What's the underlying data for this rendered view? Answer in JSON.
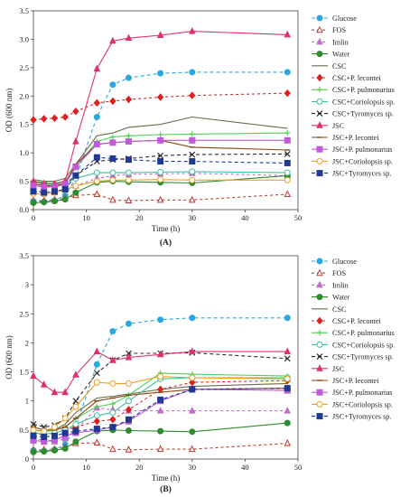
{
  "figure": {
    "panel_labels": [
      "(A)",
      "(B)"
    ]
  },
  "chart_data": [
    {
      "type": "line",
      "panel": "(A)",
      "xlabel": "Time (h)",
      "ylabel": "OD (600 nm)",
      "xlim": [
        0,
        50
      ],
      "ylim": [
        0,
        3.5
      ],
      "xticks": [
        "0",
        "10",
        "20",
        "30",
        "40",
        "50"
      ],
      "yticks": [
        "0.0",
        "0.5",
        "1.0",
        "1.5",
        "2.0",
        "2.5",
        "3.0",
        "3.5"
      ],
      "grid": false,
      "legend_position": "right",
      "x": [
        0,
        2,
        4,
        6,
        8,
        12,
        15,
        18,
        24,
        30,
        48
      ],
      "series": [
        {
          "name": "Glucose",
          "color": "#29a8e0",
          "dash": "4,3",
          "marker": "circle",
          "fill": "#29a8e0",
          "values": [
            0.15,
            0.14,
            0.16,
            0.25,
            0.55,
            1.63,
            2.2,
            2.32,
            2.4,
            2.42,
            2.42
          ]
        },
        {
          "name": "FOS",
          "color": "#c0392b",
          "dash": "3,3",
          "marker": "triangle",
          "fill": "none",
          "values": [
            0.15,
            0.16,
            0.17,
            0.2,
            0.25,
            0.27,
            0.17,
            0.16,
            0.17,
            0.17,
            0.27
          ]
        },
        {
          "name": "Imlin",
          "color": "#c06cc8",
          "dash": "3,3",
          "marker": "triangle",
          "fill": "#c06cc8",
          "values": [
            0.35,
            0.3,
            0.3,
            0.35,
            0.42,
            0.55,
            0.6,
            0.62,
            0.63,
            0.64,
            0.6
          ]
        },
        {
          "name": "Water",
          "color": "#2e8b2e",
          "dash": "",
          "marker": "circle",
          "fill": "#2e8b2e",
          "values": [
            0.12,
            0.13,
            0.15,
            0.18,
            0.3,
            0.48,
            0.5,
            0.49,
            0.48,
            0.47,
            0.6
          ]
        },
        {
          "name": "CSC",
          "color": "#6b6b4f",
          "dash": "",
          "marker": "none",
          "fill": "none",
          "values": [
            0.53,
            0.5,
            0.5,
            0.55,
            0.8,
            1.3,
            1.35,
            1.45,
            1.5,
            1.63,
            1.43
          ]
        },
        {
          "name": "CSC+P. lecontei",
          "color": "#e02020",
          "dash": "3,3",
          "marker": "diamond",
          "fill": "#e02020",
          "values": [
            1.58,
            1.6,
            1.61,
            1.63,
            1.73,
            1.88,
            1.91,
            1.94,
            1.98,
            2.01,
            2.05
          ]
        },
        {
          "name": "CSC+P. pulmonarius",
          "color": "#4cd14c",
          "dash": "",
          "marker": "plus",
          "fill": "none",
          "values": [
            0.5,
            0.48,
            0.47,
            0.5,
            0.75,
            1.2,
            1.28,
            1.3,
            1.32,
            1.33,
            1.35
          ]
        },
        {
          "name": "CSC+Coriolopsis sp.",
          "color": "#3fbfa0",
          "dash": "",
          "marker": "circle",
          "fill": "none",
          "values": [
            0.48,
            0.45,
            0.44,
            0.46,
            0.55,
            0.65,
            0.65,
            0.65,
            0.66,
            0.67,
            0.65
          ]
        },
        {
          "name": "CSC+Tyromyces sp.",
          "color": "#2b2b2b",
          "dash": "4,3",
          "marker": "x",
          "fill": "none",
          "values": [
            0.45,
            0.43,
            0.4,
            0.45,
            0.6,
            0.85,
            0.88,
            0.9,
            0.95,
            0.97,
            0.98
          ]
        },
        {
          "name": "JSC",
          "color": "#e0306a",
          "dash": "",
          "marker": "triangle",
          "fill": "#e0306a",
          "values": [
            0.5,
            0.45,
            0.45,
            0.5,
            1.2,
            2.48,
            2.97,
            3.02,
            3.07,
            3.14,
            3.08
          ]
        },
        {
          "name": "JSC+P. lecontei",
          "color": "#8b4513",
          "dash": "",
          "marker": "dash",
          "fill": "none",
          "values": [
            0.45,
            0.42,
            0.42,
            0.46,
            0.8,
            1.15,
            1.18,
            1.2,
            1.22,
            1.1,
            1.05
          ]
        },
        {
          "name": "JSC+P. pulmonarius",
          "color": "#c15ad8",
          "dash": "",
          "marker": "square",
          "fill": "#c15ad8",
          "values": [
            0.42,
            0.4,
            0.4,
            0.45,
            0.75,
            1.15,
            1.18,
            1.2,
            1.22,
            1.22,
            1.22
          ]
        },
        {
          "name": "JSC+Coriolopsis sp.",
          "color": "#f0a020",
          "dash": "",
          "marker": "circle",
          "fill": "none",
          "values": [
            0.28,
            0.27,
            0.3,
            0.35,
            0.42,
            0.5,
            0.52,
            0.52,
            0.53,
            0.52,
            0.52
          ]
        },
        {
          "name": "JSC+Tyromyces sp.",
          "color": "#1f3a93",
          "dash": "4,3",
          "marker": "square",
          "fill": "#1f3a93",
          "values": [
            0.32,
            0.3,
            0.32,
            0.36,
            0.6,
            0.92,
            0.9,
            0.88,
            0.85,
            0.85,
            0.82
          ]
        }
      ]
    },
    {
      "type": "line",
      "panel": "(B)",
      "xlabel": "Time (h)",
      "ylabel": "OD (600 nm)",
      "xlim": [
        0,
        50
      ],
      "ylim": [
        0,
        3.5
      ],
      "xticks": [
        "0",
        "10",
        "20",
        "30",
        "40",
        "50"
      ],
      "yticks": [
        "0",
        "0.5",
        "1",
        "1.5",
        "2",
        "2.5",
        "3",
        "3.5"
      ],
      "grid": false,
      "legend_position": "right",
      "x": [
        0,
        2,
        4,
        6,
        8,
        12,
        15,
        18,
        24,
        30,
        48
      ],
      "series": [
        {
          "name": "Glucose",
          "color": "#29a8e0",
          "dash": "4,3",
          "marker": "circle",
          "fill": "#29a8e0",
          "values": [
            0.15,
            0.14,
            0.16,
            0.25,
            0.55,
            1.63,
            2.2,
            2.33,
            2.4,
            2.43,
            2.43
          ]
        },
        {
          "name": "FOS",
          "color": "#c0392b",
          "dash": "3,3",
          "marker": "triangle",
          "fill": "none",
          "values": [
            0.15,
            0.16,
            0.17,
            0.2,
            0.27,
            0.28,
            0.17,
            0.16,
            0.17,
            0.17,
            0.27
          ]
        },
        {
          "name": "Imlin",
          "color": "#c06cc8",
          "dash": "3,3",
          "marker": "triangle",
          "fill": "#c06cc8",
          "values": [
            0.35,
            0.32,
            0.3,
            0.35,
            0.5,
            0.88,
            0.85,
            0.83,
            0.83,
            0.83,
            0.83
          ]
        },
        {
          "name": "Water",
          "color": "#2e8b2e",
          "dash": "",
          "marker": "circle",
          "fill": "#2e8b2e",
          "values": [
            0.12,
            0.13,
            0.15,
            0.18,
            0.3,
            0.48,
            0.5,
            0.49,
            0.48,
            0.47,
            0.62
          ]
        },
        {
          "name": "CSC",
          "color": "#6b6b4f",
          "dash": "",
          "marker": "none",
          "fill": "none",
          "values": [
            0.5,
            0.48,
            0.5,
            0.6,
            0.8,
            1.05,
            1.08,
            1.12,
            1.2,
            1.25,
            1.3
          ]
        },
        {
          "name": "CSC+P. lecontei",
          "color": "#e02020",
          "dash": "3,3",
          "marker": "diamond",
          "fill": "#e02020",
          "values": [
            0.45,
            0.42,
            0.45,
            0.5,
            0.55,
            0.65,
            0.68,
            0.85,
            1.2,
            1.32,
            1.35
          ]
        },
        {
          "name": "CSC+P. pulmonarius",
          "color": "#4cd14c",
          "dash": "",
          "marker": "plus",
          "fill": "none",
          "values": [
            0.5,
            0.47,
            0.5,
            0.55,
            0.7,
            0.9,
            0.95,
            1.1,
            1.48,
            1.46,
            1.43
          ]
        },
        {
          "name": "CSC+Coriolopsis sp.",
          "color": "#3fbfa0",
          "dash": "",
          "marker": "circle",
          "fill": "none",
          "values": [
            0.45,
            0.43,
            0.45,
            0.5,
            0.6,
            0.75,
            0.8,
            1.0,
            1.38,
            1.4,
            1.4
          ]
        },
        {
          "name": "CSC+Tyromyces sp.",
          "color": "#2b2b2b",
          "dash": "4,3",
          "marker": "x",
          "fill": "none",
          "values": [
            0.6,
            0.55,
            0.58,
            0.7,
            1.0,
            1.48,
            1.7,
            1.82,
            1.82,
            1.83,
            1.73
          ]
        },
        {
          "name": "JSC",
          "color": "#e0306a",
          "dash": "",
          "marker": "triangle",
          "fill": "#e0306a",
          "values": [
            1.43,
            1.28,
            1.15,
            1.15,
            1.45,
            1.85,
            1.7,
            1.75,
            1.8,
            1.85,
            1.85
          ]
        },
        {
          "name": "JSC+P. lecontei",
          "color": "#8b4513",
          "dash": "",
          "marker": "dash",
          "fill": "none",
          "values": [
            0.55,
            0.5,
            0.5,
            0.55,
            0.7,
            1.0,
            1.05,
            1.1,
            1.15,
            1.2,
            1.22
          ]
        },
        {
          "name": "JSC+P. pulmonarius",
          "color": "#c15ad8",
          "dash": "",
          "marker": "square",
          "fill": "#c15ad8",
          "values": [
            0.32,
            0.3,
            0.33,
            0.4,
            0.45,
            0.5,
            0.55,
            0.65,
            1.0,
            1.2,
            1.18
          ]
        },
        {
          "name": "JSC+Coriolopsis sp.",
          "color": "#f0a020",
          "dash": "",
          "marker": "circle",
          "fill": "none",
          "values": [
            0.5,
            0.48,
            0.55,
            0.7,
            0.9,
            1.32,
            1.3,
            1.3,
            1.42,
            1.4,
            1.38
          ]
        },
        {
          "name": "JSC+Tyromyces sp.",
          "color": "#1f3a93",
          "dash": "4,3",
          "marker": "square",
          "fill": "#1f3a93",
          "values": [
            0.4,
            0.38,
            0.4,
            0.45,
            0.48,
            0.52,
            0.55,
            0.68,
            1.02,
            1.2,
            1.22
          ]
        }
      ]
    }
  ]
}
